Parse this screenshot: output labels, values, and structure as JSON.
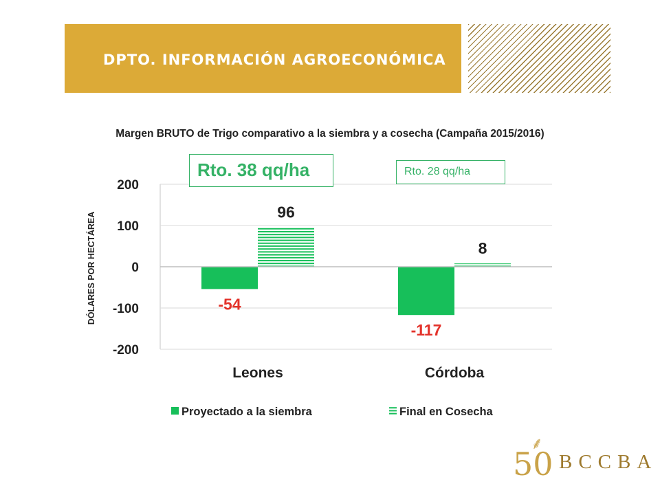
{
  "header": {
    "title": "DPTO. INFORMACIÓN AGROECONÓMICA",
    "brand_color": "#dcaa37"
  },
  "subtitle": "Margen BRUTO de Trigo comparativo a la siembra y a cosecha (Campaña 2015/2016)",
  "annotations": {
    "rto_big": "Rto. 38 qq/ha",
    "rto_small": "Rto. 28 qq/ha",
    "color": "#35b266"
  },
  "chart_data": {
    "type": "bar",
    "title": "",
    "ylabel": "DÓLARES POR HECTÁREA",
    "xlabel": "",
    "ylim": [
      -200,
      200
    ],
    "yticks": [
      200,
      100,
      0,
      -100,
      -200
    ],
    "ytick_labels": [
      "200",
      "100",
      "0",
      "-100",
      "-200"
    ],
    "categories": [
      "Leones",
      "Córdoba"
    ],
    "grid": true,
    "legend_position": "bottom",
    "series": [
      {
        "name": "Proyectado a la siembra",
        "values": [
          -54,
          -117
        ],
        "labels": [
          "-54",
          "-117"
        ],
        "color": "#17bf5a",
        "label_color": "#e3322a",
        "pattern": "solid"
      },
      {
        "name": "Final en Cosecha",
        "values": [
          96,
          8
        ],
        "labels": [
          "96",
          "8"
        ],
        "color": "#17bf5a",
        "label_color": "#222222",
        "pattern": "horizontal-lines"
      }
    ]
  },
  "logo": {
    "number": "50",
    "text": "BCCBA",
    "color": "#c9a248"
  }
}
